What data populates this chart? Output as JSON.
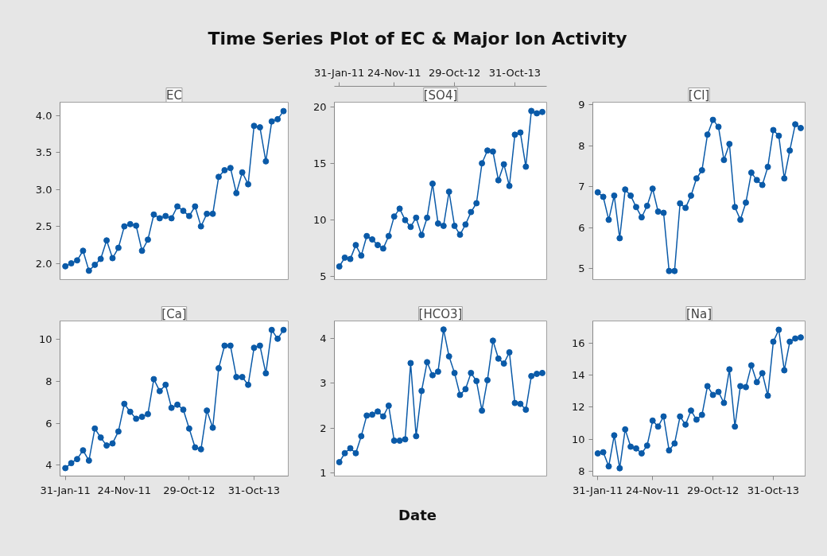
{
  "chart_data": [
    {
      "type": "line",
      "title": "Time Series Plot of EC & Major Ion Activity",
      "categories": [
        null,
        null,
        null,
        null,
        null,
        null,
        null,
        null,
        null,
        null,
        null,
        null,
        null,
        null,
        null,
        null,
        null,
        null,
        null,
        null,
        null,
        null,
        null,
        null,
        null,
        null,
        null,
        null,
        null,
        null,
        null,
        null,
        null,
        null,
        null,
        null,
        null,
        null
      ],
      "ylim": [
        1.78,
        4.18
      ],
      "yticks": [
        {
          "value": 2.0,
          "label": "2.0"
        },
        {
          "value": 2.5,
          "label": "2.5"
        },
        {
          "value": 3.0,
          "label": "3.0"
        },
        {
          "value": 3.5,
          "label": "3.5"
        },
        {
          "value": 4.0,
          "label": "4.0"
        }
      ],
      "tick_labels": "y",
      "marker": "circle",
      "line_style": "solid",
      "legend": false,
      "series": [
        {
          "name": "EC",
          "color": "#0a5aa8",
          "values": [
            1.96,
            2.0,
            2.04,
            2.17,
            1.9,
            1.98,
            2.06,
            2.31,
            2.07,
            2.21,
            2.5,
            2.53,
            2.51,
            2.17,
            2.32,
            2.66,
            2.61,
            2.64,
            2.61,
            2.77,
            2.71,
            2.64,
            2.77,
            2.5,
            2.67,
            2.67,
            3.17,
            3.26,
            3.29,
            2.95,
            3.23,
            3.07,
            3.86,
            3.84,
            3.38,
            3.92,
            3.95,
            4.06
          ]
        }
      ]
    },
    {
      "type": "line",
      "categories": [
        "31-Jan-11",
        null,
        null,
        null,
        null,
        null,
        null,
        null,
        null,
        null,
        "24-Nov-11",
        null,
        null,
        null,
        null,
        null,
        null,
        null,
        null,
        null,
        null,
        "29-Oct-12",
        null,
        null,
        null,
        null,
        null,
        null,
        null,
        null,
        null,
        null,
        "31-Oct-13",
        null,
        null,
        null,
        null,
        null
      ],
      "ylim": [
        4.72,
        20.4
      ],
      "yticks": [
        5,
        10,
        15,
        20
      ],
      "marker": "circle",
      "line_style": "solid",
      "legend": false,
      "series": [
        {
          "name": "[SO4]",
          "color": "#0a5aa8",
          "values": [
            5.88,
            6.66,
            6.54,
            7.77,
            6.84,
            8.57,
            8.27,
            7.77,
            7.47,
            8.57,
            10.3,
            10.99,
            9.98,
            9.38,
            10.19,
            8.66,
            10.19,
            13.2,
            9.68,
            9.47,
            12.49,
            9.47,
            8.69,
            9.59,
            10.69,
            11.47,
            15.0,
            16.13,
            16.04,
            13.5,
            14.91,
            13.0,
            17.53,
            17.72,
            14.7,
            19.63,
            19.42,
            19.54
          ]
        }
      ]
    },
    {
      "type": "line",
      "categories": [
        null,
        null,
        null,
        null,
        null,
        null,
        null,
        null,
        null,
        null,
        null,
        null,
        null,
        null,
        null,
        null,
        null,
        null,
        null,
        null,
        null,
        null,
        null,
        null,
        null,
        null,
        null,
        null,
        null,
        null,
        null,
        null,
        null,
        null,
        null,
        null,
        null,
        null
      ],
      "ylim": [
        4.73,
        9.06
      ],
      "yticks": [
        5,
        6,
        7,
        8,
        9
      ],
      "tick_labels": "y",
      "marker": "circle",
      "line_style": "solid",
      "legend": false,
      "series": [
        {
          "name": "[Cl]",
          "color": "#0a5aa8",
          "values": [
            6.86,
            6.75,
            6.19,
            6.78,
            5.74,
            6.93,
            6.78,
            6.5,
            6.25,
            6.53,
            6.95,
            6.39,
            6.36,
            4.94,
            4.94,
            6.59,
            6.48,
            6.78,
            7.2,
            7.4,
            8.27,
            8.63,
            8.46,
            7.65,
            8.04,
            6.5,
            6.19,
            6.61,
            7.34,
            7.16,
            7.04,
            7.48,
            8.38,
            8.24,
            7.2,
            7.88,
            8.52,
            8.43
          ]
        }
      ]
    },
    {
      "type": "line",
      "categories": [
        "31-Jan-11",
        null,
        null,
        null,
        null,
        null,
        null,
        null,
        null,
        null,
        "24-Nov-11",
        null,
        null,
        null,
        null,
        null,
        null,
        null,
        null,
        null,
        null,
        "29-Oct-12",
        null,
        null,
        null,
        null,
        null,
        null,
        null,
        null,
        null,
        null,
        "31-Oct-13",
        null,
        null,
        null,
        null,
        null
      ],
      "ylim": [
        3.48,
        10.89
      ],
      "yticks": [
        4,
        6,
        8,
        10
      ],
      "marker": "circle",
      "line_style": "solid",
      "legend": false,
      "series": [
        {
          "name": "[Ca]",
          "color": "#0a5aa8",
          "values": [
            3.86,
            4.1,
            4.29,
            4.71,
            4.22,
            5.75,
            5.32,
            4.94,
            5.04,
            5.61,
            6.93,
            6.55,
            6.22,
            6.31,
            6.44,
            8.11,
            7.54,
            7.84,
            6.74,
            6.89,
            6.65,
            5.75,
            4.85,
            4.76,
            6.61,
            5.79,
            8.63,
            9.71,
            9.71,
            8.21,
            8.21,
            7.84,
            9.61,
            9.71,
            8.39,
            10.46,
            10.04,
            10.46
          ]
        }
      ]
    },
    {
      "type": "line",
      "xlabel": "Date",
      "categories": [
        null,
        null,
        null,
        null,
        null,
        null,
        null,
        null,
        null,
        null,
        null,
        null,
        null,
        null,
        null,
        null,
        null,
        null,
        null,
        null,
        null,
        null,
        null,
        null,
        null,
        null,
        null,
        null,
        null,
        null,
        null,
        null,
        null,
        null,
        null,
        null,
        null,
        null
      ],
      "ylim": [
        0.93,
        4.39
      ],
      "yticks": [
        1,
        2,
        3,
        4
      ],
      "tick_labels": "y",
      "marker": "circle",
      "line_style": "solid",
      "legend": false,
      "series": [
        {
          "name": "[HCO3]",
          "color": "#0a5aa8",
          "values": [
            1.24,
            1.44,
            1.55,
            1.44,
            1.82,
            2.28,
            2.3,
            2.37,
            2.26,
            2.5,
            1.72,
            1.72,
            1.75,
            3.45,
            1.82,
            2.83,
            3.47,
            3.18,
            3.26,
            4.2,
            3.6,
            3.23,
            2.74,
            2.87,
            3.23,
            3.05,
            2.39,
            3.07,
            3.95,
            3.55,
            3.44,
            3.69,
            2.56,
            2.54,
            2.41,
            3.16,
            3.21,
            3.23
          ]
        }
      ]
    },
    {
      "type": "line",
      "categories": [
        "31-Jan-11",
        null,
        null,
        null,
        null,
        null,
        null,
        null,
        null,
        null,
        "24-Nov-11",
        null,
        null,
        null,
        null,
        null,
        null,
        null,
        null,
        null,
        null,
        "29-Oct-12",
        null,
        null,
        null,
        null,
        null,
        null,
        null,
        null,
        null,
        null,
        "31-Oct-13",
        null,
        null,
        null,
        null,
        null
      ],
      "ylim": [
        7.69,
        17.4
      ],
      "yticks": [
        8,
        10,
        12,
        14,
        16
      ],
      "marker": "circle",
      "line_style": "solid",
      "legend": false,
      "series": [
        {
          "name": "[Na]",
          "color": "#0a5aa8",
          "values": [
            9.11,
            9.18,
            8.3,
            10.24,
            8.18,
            10.61,
            9.53,
            9.42,
            9.11,
            9.6,
            11.16,
            10.79,
            11.42,
            9.3,
            9.73,
            11.42,
            10.91,
            11.79,
            11.22,
            11.52,
            13.32,
            12.77,
            12.96,
            12.27,
            14.37,
            10.79,
            13.32,
            13.26,
            14.62,
            13.57,
            14.13,
            12.72,
            16.1,
            16.85,
            14.31,
            16.1,
            16.3,
            16.37
          ]
        }
      ]
    }
  ]
}
